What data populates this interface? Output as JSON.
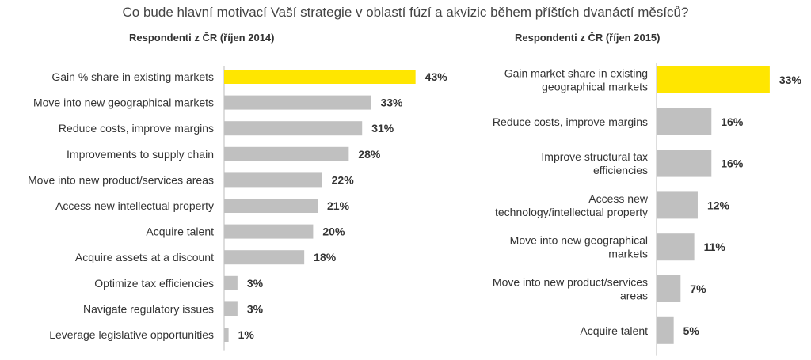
{
  "title": "Co bude hlavní motivací Vaší strategie v oblastí fúzí a akvizic během příštích dvanáctí měsíců?",
  "colors": {
    "highlight": "#ffe600",
    "bar": "#c0c0c0",
    "axis": "#bbbbbb"
  },
  "chart_data": [
    {
      "type": "bar",
      "orientation": "horizontal",
      "title": "Respondenti z ČR (říjen 2014)",
      "categories": [
        "Gain % share in existing markets",
        "Move into new geographical markets",
        "Reduce costs, improve margins",
        "Improvements to supply chain",
        "Move into new product/services areas",
        "Access new intellectual property",
        "Acquire talent",
        "Acquire assets at a discount",
        "Optimize tax efficiencies",
        "Navigate regulatory issues",
        "Leverage legislative opportunities"
      ],
      "values": [
        43,
        33,
        31,
        28,
        22,
        21,
        20,
        18,
        3,
        3,
        1
      ],
      "value_labels": [
        "43%",
        "33%",
        "31%",
        "28%",
        "22%",
        "21%",
        "20%",
        "18%",
        "3%",
        "3%",
        "1%"
      ],
      "highlight_index": 0
    },
    {
      "type": "bar",
      "orientation": "horizontal",
      "title": "Respondenti z ČR (říjen 2015)",
      "categories": [
        [
          "Gain market share in existing",
          "geographical markets"
        ],
        [
          "Reduce costs, improve margins"
        ],
        [
          "Improve structural tax",
          "efficiencies"
        ],
        [
          "Access new",
          "technology/intellectual property"
        ],
        [
          "Move into new geographical",
          "markets"
        ],
        [
          "Move into new product/services",
          "areas"
        ],
        [
          "Acquire talent"
        ]
      ],
      "values": [
        33,
        16,
        16,
        12,
        11,
        7,
        5
      ],
      "value_labels": [
        "33%",
        "16%",
        "16%",
        "12%",
        "11%",
        "7%",
        "5%"
      ],
      "highlight_index": 0
    }
  ]
}
